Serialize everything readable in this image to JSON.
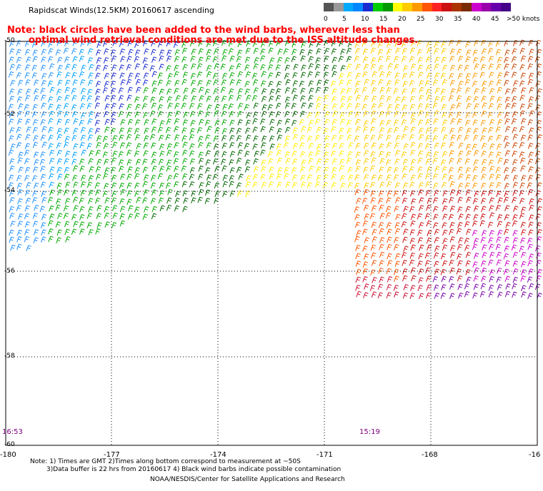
{
  "title": "Rapidscat Winds(12.5KM) 20160617 ascending",
  "note": {
    "line1": "Note: black circles have been added to the wind barbs, wherever less than",
    "line2": "optimal wind retrieval conditions are met due to the ISS altitude changes."
  },
  "legend": {
    "labels": [
      "0",
      "5",
      "10",
      "15",
      "20",
      "25",
      "30",
      "35",
      "40",
      "45",
      ">50 knots"
    ],
    "colors": [
      "#555555",
      "#999999",
      "#00aaff",
      "#0088ff",
      "#1a2bd0",
      "#00cc00",
      "#009900",
      "#ffff00",
      "#ffcc00",
      "#ff9900",
      "#ff5500",
      "#ff2222",
      "#cc1111",
      "#aa3300",
      "#7a2a00",
      "#cc00cc",
      "#9900aa",
      "#6600aa",
      "#440088"
    ]
  },
  "axes": {
    "lat_labels": [
      "-50",
      "-52",
      "-54",
      "-56",
      "-58",
      "-60"
    ],
    "lon_labels": [
      "-180",
      "-177",
      "-174",
      "-171",
      "-168",
      "-16"
    ]
  },
  "times": [
    "16:53",
    "15:19"
  ],
  "footer": {
    "line1": "Note: 1) Times are GMT 2)Times along bottom correspond to measurement at ~50S",
    "line2": "3)Data buffer is 22 hrs from 20160617 4) Black wind barbs indicate possible contamination",
    "line3": "NOAA/NESDIS/Center for Satellite Applications and Research"
  }
}
